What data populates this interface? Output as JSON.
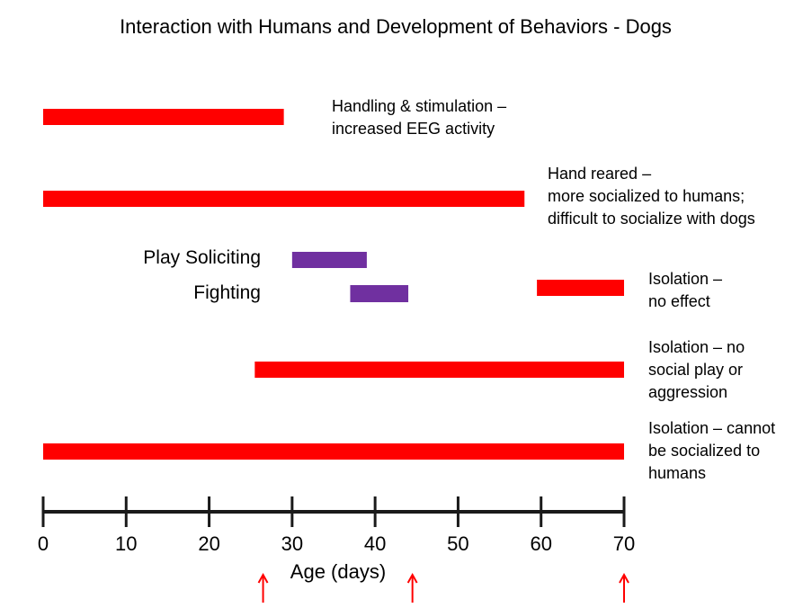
{
  "chart_data": {
    "type": "timeline",
    "title": "Interaction with Humans and Development of Behaviors - Dogs",
    "xlabel": "Age (days)",
    "xlim": [
      0,
      70
    ],
    "xticks": [
      0,
      10,
      20,
      30,
      40,
      50,
      60,
      70
    ],
    "grid": false,
    "colors": {
      "red": "#FF0000",
      "purple": "#7030A0",
      "axis": "#1a1a1a"
    },
    "bars": [
      {
        "start": 0,
        "end": 29,
        "color": "red",
        "label": [
          "Handling & stimulation –",
          "increased EEG activity"
        ]
      },
      {
        "start": 0,
        "end": 58,
        "color": "red",
        "label": [
          "Hand reared –",
          "more socialized to humans;",
          "difficult to socialize with dogs"
        ]
      },
      {
        "start": 30,
        "end": 39,
        "color": "purple",
        "label": [
          "Play Soliciting"
        ]
      },
      {
        "start": 37,
        "end": 44,
        "color": "purple",
        "label": [
          "Fighting"
        ]
      },
      {
        "start": 59.5,
        "end": 70,
        "color": "red",
        "label": [
          "Isolation –",
          "no effect"
        ]
      },
      {
        "start": 25.5,
        "end": 70,
        "color": "red",
        "label": [
          "Isolation – no",
          "social play or",
          "aggression"
        ]
      },
      {
        "start": 0,
        "end": 70,
        "color": "red",
        "label": [
          "Isolation – cannot",
          "be socialized to",
          "humans"
        ]
      }
    ],
    "arrows": [
      26.5,
      44.5,
      70
    ]
  }
}
